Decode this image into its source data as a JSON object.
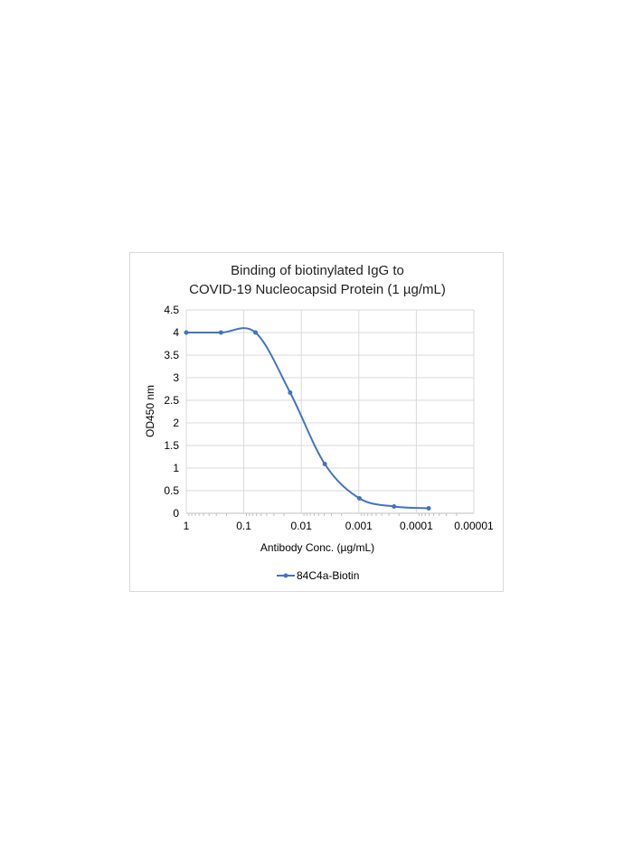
{
  "chart_data": {
    "type": "line",
    "title_lines": [
      "Binding of biotinylated IgG to",
      "COVID-19 Nucleocapsid Protein (1 µg/mL)"
    ],
    "xlabel": "Antibody Conc. (µg/mL)",
    "ylabel": "OD450 nm",
    "x_scale": "log",
    "x_reversed": true,
    "xlim": [
      1,
      1e-05
    ],
    "ylim": [
      0,
      4.5
    ],
    "x_ticks": [
      1,
      0.1,
      0.01,
      0.001,
      0.0001,
      1e-05
    ],
    "x_tick_labels": [
      "1",
      "0.1",
      "0.01",
      "0.001",
      "0.0001",
      "0.00001"
    ],
    "y_ticks": [
      0,
      0.5,
      1,
      1.5,
      2,
      2.5,
      3,
      3.5,
      4,
      4.5
    ],
    "y_tick_labels": [
      "0",
      "0.5",
      "1",
      "1.5",
      "2",
      "2.5",
      "3",
      "3.5",
      "4",
      "4.5"
    ],
    "grid": true,
    "legend_position": "bottom",
    "series": [
      {
        "name": "84C4a-Biotin",
        "color": "#4472c4",
        "smooth": true,
        "x": [
          1,
          0.25,
          0.0625,
          0.015625,
          0.00390625,
          0.0009765625,
          0.000244140625,
          6.103515625e-05
        ],
        "y": [
          4.0,
          4.0,
          4.0,
          2.67,
          1.09,
          0.33,
          0.15,
          0.11
        ]
      }
    ]
  }
}
